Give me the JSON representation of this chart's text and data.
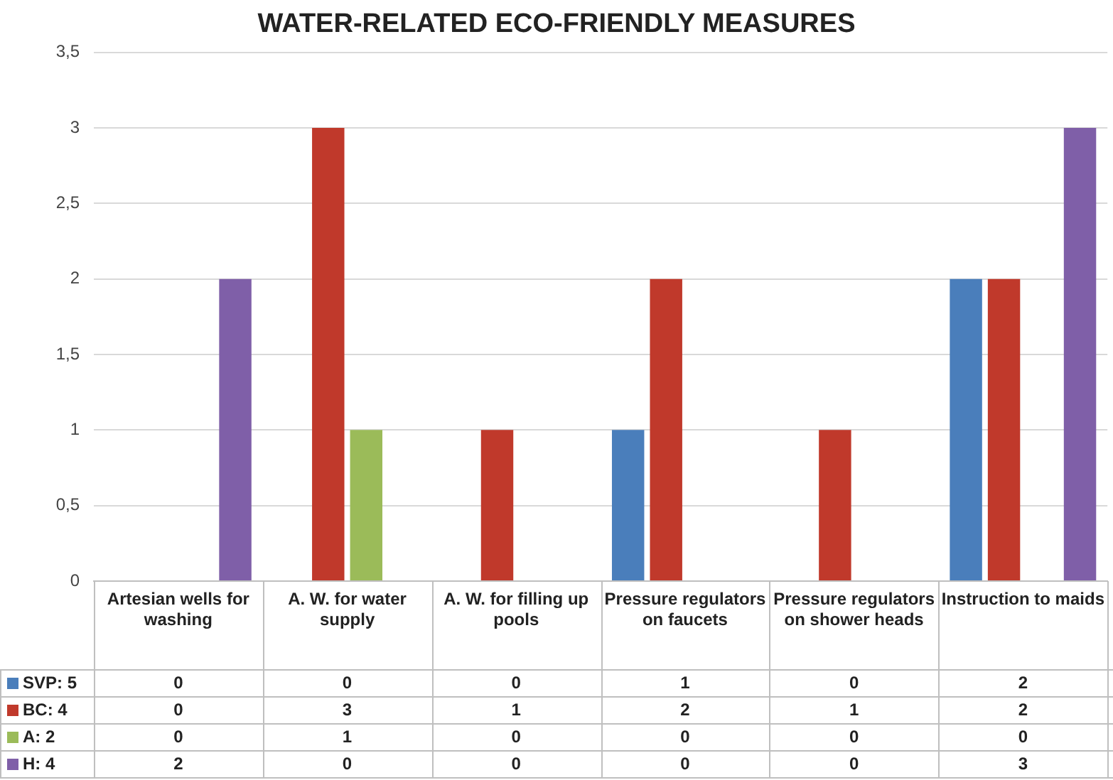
{
  "chart_data": {
    "type": "bar",
    "title": "WATER-RELATED ECO-FRIENDLY MEASURES",
    "categories": [
      "Artesian wells for washing",
      "A. W. for water supply",
      "A. W. for filling up pools",
      "Pressure regulators on faucets",
      "Pressure regulators on shower heads",
      "Instruction to maids"
    ],
    "series": [
      {
        "name": "SVP: 5",
        "color": "#4a7ebb",
        "values": [
          0,
          0,
          0,
          1,
          0,
          2
        ]
      },
      {
        "name": "BC: 4",
        "color": "#c0392b",
        "values": [
          0,
          3,
          1,
          2,
          1,
          2
        ]
      },
      {
        "name": "A: 2",
        "color": "#9bbb59",
        "values": [
          0,
          1,
          0,
          0,
          0,
          0
        ]
      },
      {
        "name": "H: 4",
        "color": "#7f5fa8",
        "values": [
          2,
          0,
          0,
          0,
          0,
          3
        ]
      }
    ],
    "ylim": [
      0,
      3.5
    ],
    "yticks": [
      0,
      {
        "value": 0.5,
        "label": "0,5"
      },
      1,
      {
        "value": 1.5,
        "label": "1,5"
      },
      2,
      {
        "value": 2.5,
        "label": "2,5"
      },
      3,
      {
        "value": 3.5,
        "label": "3,5"
      }
    ],
    "grid": "y",
    "legend": "bottom",
    "data_labels": true
  }
}
